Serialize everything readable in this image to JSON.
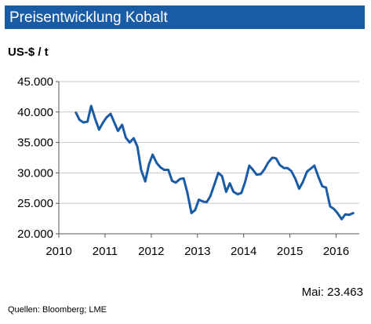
{
  "chart_data": {
    "type": "line",
    "title": "Preisentwicklung Kobalt",
    "ylabel": "US-$ / t",
    "xlabel": "",
    "ylim": [
      20000,
      45000
    ],
    "xlim": [
      2010,
      2016.5
    ],
    "yticks": [
      "20.000",
      "25.000",
      "30.000",
      "35.000",
      "40.000",
      "45.000"
    ],
    "yticks_values": [
      20000,
      25000,
      30000,
      35000,
      40000,
      45000
    ],
    "xticks": [
      "2010",
      "2011",
      "2012",
      "2013",
      "2014",
      "2015",
      "2016"
    ],
    "xticks_values": [
      2010,
      2011,
      2012,
      2013,
      2014,
      2015,
      2016
    ],
    "grid": true,
    "legend": "none",
    "line_color": "#1a5ba6",
    "series": [
      {
        "x": [
          2010.37,
          2010.45,
          2010.53,
          2010.62,
          2010.7,
          2010.78,
          2010.87,
          2010.95,
          2011.03,
          2011.12,
          2011.2,
          2011.28,
          2011.37,
          2011.45,
          2011.53,
          2011.62,
          2011.7,
          2011.78,
          2011.87,
          2011.95,
          2012.03,
          2012.12,
          2012.2,
          2012.28,
          2012.37,
          2012.45,
          2012.53,
          2012.62,
          2012.7,
          2012.78,
          2012.87,
          2012.95,
          2013.03,
          2013.12,
          2013.2,
          2013.28,
          2013.37,
          2013.45,
          2013.53,
          2013.62,
          2013.7,
          2013.78,
          2013.87,
          2013.95,
          2014.03,
          2014.12,
          2014.2,
          2014.28,
          2014.37,
          2014.45,
          2014.53,
          2014.62,
          2014.7,
          2014.78,
          2014.87,
          2014.95,
          2015.03,
          2015.12,
          2015.2,
          2015.28,
          2015.37,
          2015.45,
          2015.53,
          2015.62,
          2015.7,
          2015.78,
          2015.87,
          2015.95,
          2016.03,
          2016.12,
          2016.2,
          2016.28,
          2016.37
        ],
        "values": [
          39900,
          38700,
          38300,
          38400,
          41000,
          39000,
          37100,
          38200,
          39100,
          39700,
          38300,
          36900,
          37900,
          35800,
          35000,
          35700,
          34300,
          30500,
          28600,
          31400,
          33000,
          31600,
          30900,
          30500,
          30500,
          28700,
          28400,
          29000,
          29100,
          26800,
          23400,
          23900,
          25600,
          25300,
          25200,
          26200,
          28200,
          30000,
          29500,
          26900,
          28300,
          26900,
          26500,
          26700,
          28500,
          31200,
          30500,
          29700,
          29800,
          30600,
          31700,
          32500,
          32400,
          31300,
          30800,
          30800,
          30300,
          29000,
          27400,
          28500,
          30200,
          30700,
          31200,
          29300,
          27800,
          27600,
          24500,
          24100,
          23400,
          22400,
          23200,
          23100,
          23400
        ]
      }
    ]
  },
  "footer": {
    "latest_label": "Mai: 23.463",
    "source": "Quellen: Bloomberg; LME"
  }
}
